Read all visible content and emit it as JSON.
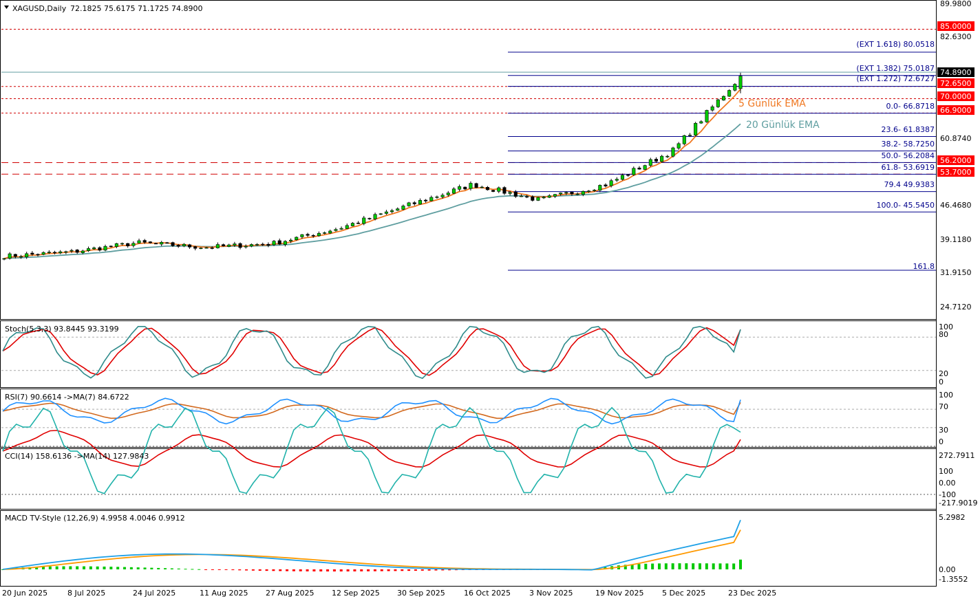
{
  "header": {
    "symbol": "XAGUSD,Daily",
    "ohlc": "72.1825 75.6175 71.1725 74.8900"
  },
  "colors": {
    "bull": "#00c800",
    "bear": "#ff0000",
    "ema5": "#f07820",
    "ema20": "#5f9ea0",
    "fibo": "#00008b",
    "level": "#d00000",
    "price_bg": "#000000",
    "stoch_main": "#2e8b8b",
    "stoch_signal": "#e00000",
    "rsi_main": "#1e90ff",
    "rsi_ma": "#d2691e",
    "cci_main": "#20b2aa",
    "cci_ma": "#e00000",
    "macd_main": "#1ea0e6",
    "macd_signal": "#ff9900"
  },
  "main_axis": {
    "ticks": [
      "89.9800",
      "82.6300",
      "60.8740",
      "46.4680",
      "39.1180",
      "31.9150",
      "24.7120"
    ]
  },
  "price_tags": {
    "last": "74.8900",
    "levels": [
      "85.0000",
      "72.6500",
      "70.0000",
      "66.9000",
      "56.2000",
      "53.7000"
    ]
  },
  "fibo_labels": [
    "(EXT 1.618)  80.0518",
    "(EXT 1.382)  75.0187",
    "(EXT 1.272)  72.6727",
    "0.0- 66.8718",
    "23.6- 61.8387",
    "38.2- 58.7250",
    "50.0- 56.2084",
    "61.8- 53.6919",
    "79.4 49.9383",
    "100.0- 45.5450",
    "161.8"
  ],
  "ema_labels": {
    "ema5": "5 Günlük EMA",
    "ema20": "20 Günlük EMA"
  },
  "stoch": {
    "title": "Stoch(5,3,3) 93.8445 93.3199",
    "ticks": [
      "100",
      "80",
      "20",
      "0"
    ]
  },
  "rsi": {
    "title": "RSI(7) 90.6614  ->MA(7) 84.6722",
    "ticks": [
      "100",
      "70",
      "30",
      "0"
    ]
  },
  "cci": {
    "title": "CCI(14) 158.6136  ->MA(14) 127.9843",
    "ticks": [
      "272.7911",
      "100",
      "0.00",
      "-100",
      "-217.9019"
    ]
  },
  "macd": {
    "title": "MACD TV-Style (12,26,9) 4.9958 4.0046 0.9912",
    "ticks": [
      "5.2982",
      "0.00",
      "-1.3552"
    ]
  },
  "time_axis": {
    "labels": [
      "20 Jun 2025",
      "8 Jul 2025",
      "24 Jul 2025",
      "11 Aug 2025",
      "27 Aug 2025",
      "12 Sep 2025",
      "30 Sep 2025",
      "16 Oct 2025",
      "3 Nov 2025",
      "19 Nov 2025",
      "5 Dec 2025",
      "23 Dec 2025"
    ]
  },
  "chart_data": {
    "type": "candlestick",
    "symbol": "XAGUSD",
    "timeframe": "Daily",
    "x_range": [
      "20 Jun 2025",
      "23 Dec 2025"
    ],
    "close_keypoints": [
      [
        "20 Jun 2025",
        36.0
      ],
      [
        "8 Jul 2025",
        36.9
      ],
      [
        "24 Jul 2025",
        38.9
      ],
      [
        "11 Aug 2025",
        37.9
      ],
      [
        "27 Aug 2025",
        38.7
      ],
      [
        "12 Sep 2025",
        42.0
      ],
      [
        "30 Sep 2025",
        46.8
      ],
      [
        "16 Oct 2025",
        51.5
      ],
      [
        "3 Nov 2025",
        48.1
      ],
      [
        "19 Nov 2025",
        51.5
      ],
      [
        "5 Dec 2025",
        58.9
      ],
      [
        "23 Dec 2025",
        74.89
      ]
    ],
    "last_bar": {
      "open": 72.1825,
      "high": 75.6175,
      "low": 71.1725,
      "close": 74.89
    },
    "horizontal_levels": [
      85.0,
      72.65,
      70.0,
      66.9,
      56.2,
      53.7
    ],
    "fibonacci": {
      "EXT 1.618": 80.0518,
      "EXT 1.382": 75.0187,
      "EXT 1.272": 72.6727,
      "0.0": 66.8718,
      "23.6": 61.8387,
      "38.2": 58.725,
      "50.0": 56.2084,
      "61.8": 53.6919,
      "79.4": 49.9383,
      "100.0": 45.545
    },
    "indicators": {
      "ema5_last": 70.9,
      "ema20_last": 64.2,
      "stoch": {
        "main": 93.8445,
        "signal": 93.3199
      },
      "rsi7": {
        "value": 90.6614,
        "ma7": 84.6722
      },
      "cci14": {
        "value": 158.6136,
        "ma14": 127.9843
      },
      "macd": {
        "macd": 4.9958,
        "signal": 4.0046,
        "histogram": 0.9912
      }
    }
  }
}
